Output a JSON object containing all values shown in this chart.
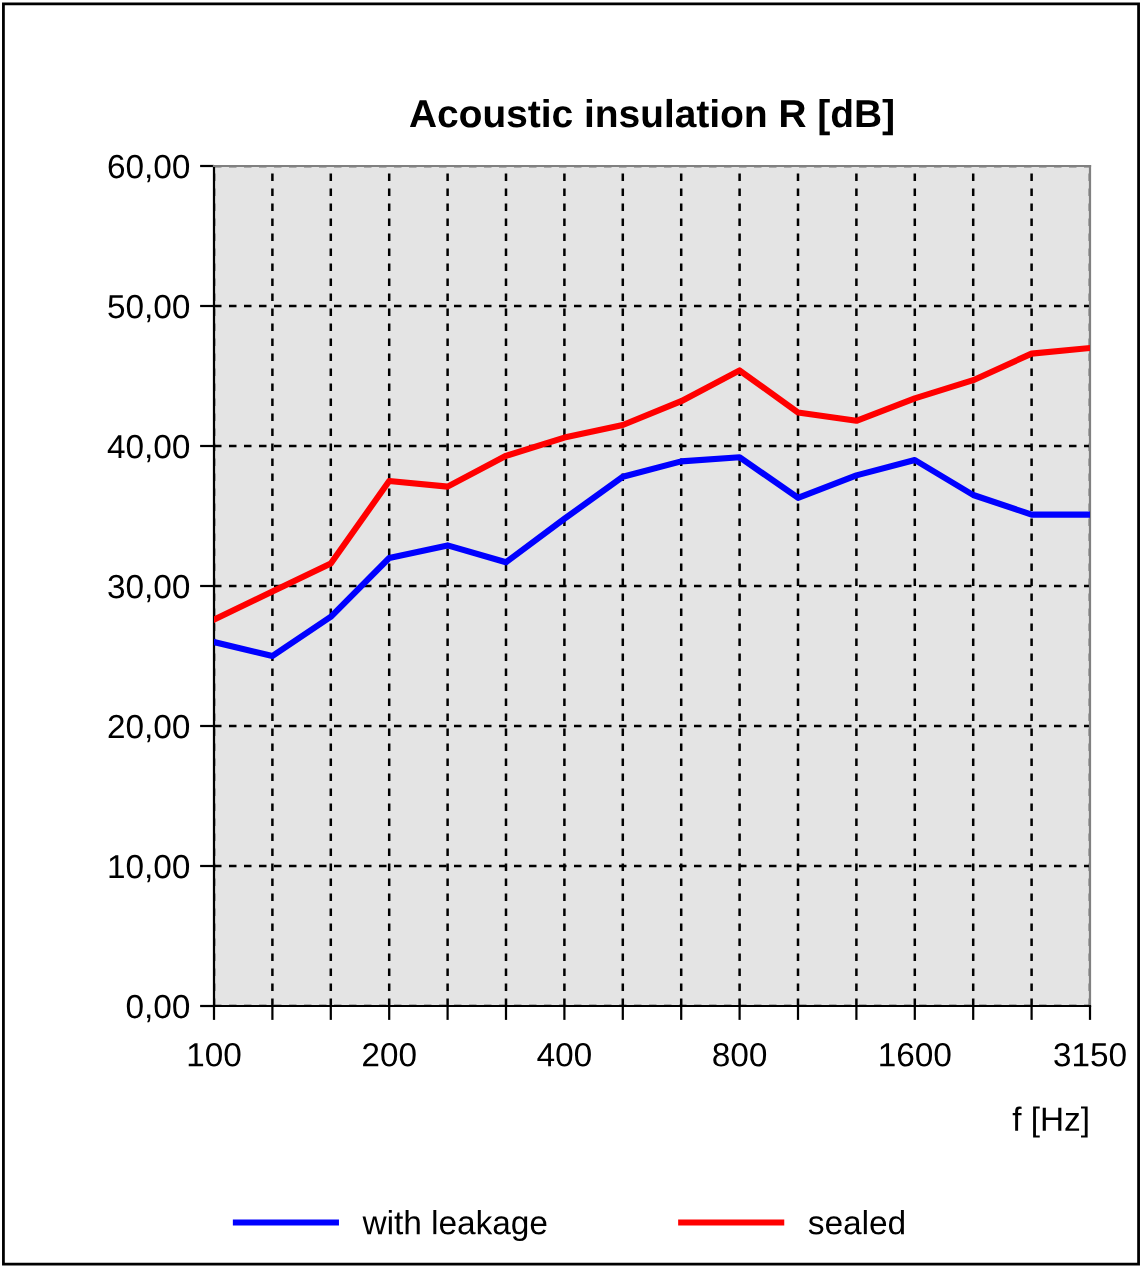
{
  "chart_data": {
    "type": "line",
    "title": "Acoustic insulation R [dB]",
    "xlabel": "f [Hz]",
    "categories": [
      "100",
      null,
      null,
      "200",
      null,
      null,
      "400",
      null,
      null,
      "800",
      null,
      null,
      "1600",
      null,
      null,
      "3150"
    ],
    "series": [
      {
        "name": "with leakage",
        "color": "#0000ff",
        "values": [
          26.0,
          25.0,
          27.8,
          32.0,
          32.9,
          31.7,
          34.8,
          37.8,
          38.9,
          39.2,
          36.3,
          37.9,
          39.0,
          36.5,
          35.1,
          35.1
        ]
      },
      {
        "name": "sealed",
        "color": "#ff0000",
        "values": [
          27.6,
          29.6,
          31.6,
          37.5,
          37.1,
          39.3,
          40.6,
          41.5,
          43.2,
          45.4,
          42.4,
          41.8,
          43.4,
          44.7,
          46.6,
          47.0
        ]
      }
    ],
    "ylim": [
      0,
      60
    ],
    "yticks": [
      {
        "value": 0,
        "label": "0,00"
      },
      {
        "value": 10,
        "label": "10,00"
      },
      {
        "value": 20,
        "label": "20,00"
      },
      {
        "value": 30,
        "label": "30,00"
      },
      {
        "value": 40,
        "label": "40,00"
      },
      {
        "value": 50,
        "label": "50,00"
      },
      {
        "value": 60,
        "label": "60,00"
      }
    ],
    "grid": true,
    "legend": "bottom",
    "marker": "none",
    "line_style": "solid"
  }
}
